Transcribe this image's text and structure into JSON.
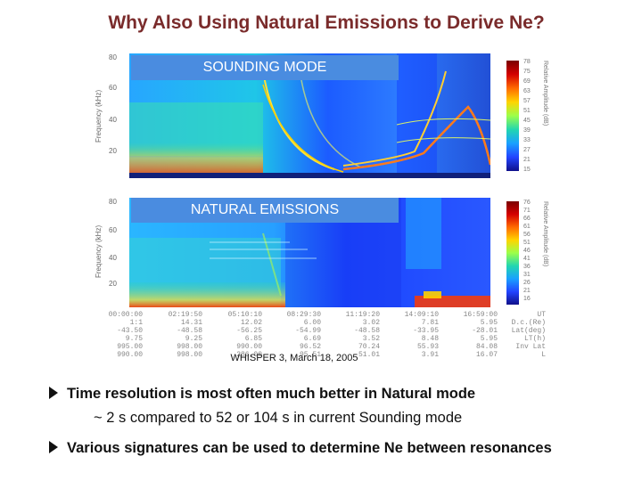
{
  "slide": {
    "title": "Why Also Using Natural Emissions to Derive Ne?",
    "caption": "WHISPER 3, March 18, 2005",
    "bullets": [
      {
        "text": "Time resolution is most often much better in Natural mode"
      },
      {
        "text": "Various signatures can be used to determine Ne between resonances"
      }
    ],
    "sub_text": "~ 2 s compared to  52 or 104 s in current Sounding mode"
  },
  "figure": {
    "top_panel": {
      "mode_label": "SOUNDING MODE",
      "y_axis_label": "Frequency (kHz)",
      "y_ticks": [
        "80",
        "60",
        "40",
        "20"
      ],
      "colorbar_ticks": [
        "78",
        "75",
        "69",
        "63",
        "57",
        "51",
        "45",
        "39",
        "33",
        "27",
        "21",
        "15"
      ],
      "colorbar_label": "Relative Amplitude (dB)"
    },
    "bottom_panel": {
      "mode_label": "NATURAL EMISSIONS",
      "y_axis_label": "Frequency (kHz)",
      "y_ticks": [
        "80",
        "60",
        "40",
        "20"
      ],
      "colorbar_ticks": [
        "76",
        "71",
        "66",
        "61",
        "56",
        "51",
        "46",
        "41",
        "36",
        "31",
        "26",
        "21",
        "16"
      ],
      "colorbar_label": "Relative Amplitude (dB)"
    },
    "time_columns": [
      [
        "00:00:00",
        "1:1",
        "-43.50",
        "9.75",
        "995.00",
        "990.00"
      ],
      [
        "02:19:50",
        "14.31",
        "-48.58",
        "9.25",
        "998.00",
        "998.00"
      ],
      [
        "05:10:10",
        "12.02",
        "-56.25",
        "6.85",
        "990.00",
        "286.00"
      ],
      [
        "08:29:30",
        "6.00",
        "-54.99",
        "6.69",
        "96.52",
        "95.51"
      ],
      [
        "11:19:20",
        "3.02",
        "-48.58",
        "3.52",
        "70.24",
        "51.01"
      ],
      [
        "14:09:10",
        "7.81",
        "-33.95",
        "8.48",
        "55.93",
        "3.91"
      ],
      [
        "16:59:00",
        "5.95",
        "-28.01",
        "5.95",
        "84.08",
        "16.07"
      ]
    ],
    "row_labels": [
      "UT",
      "D.c.(Re)",
      "Lat(deg)",
      "LT(h)",
      "Inv Lat",
      "L"
    ]
  }
}
